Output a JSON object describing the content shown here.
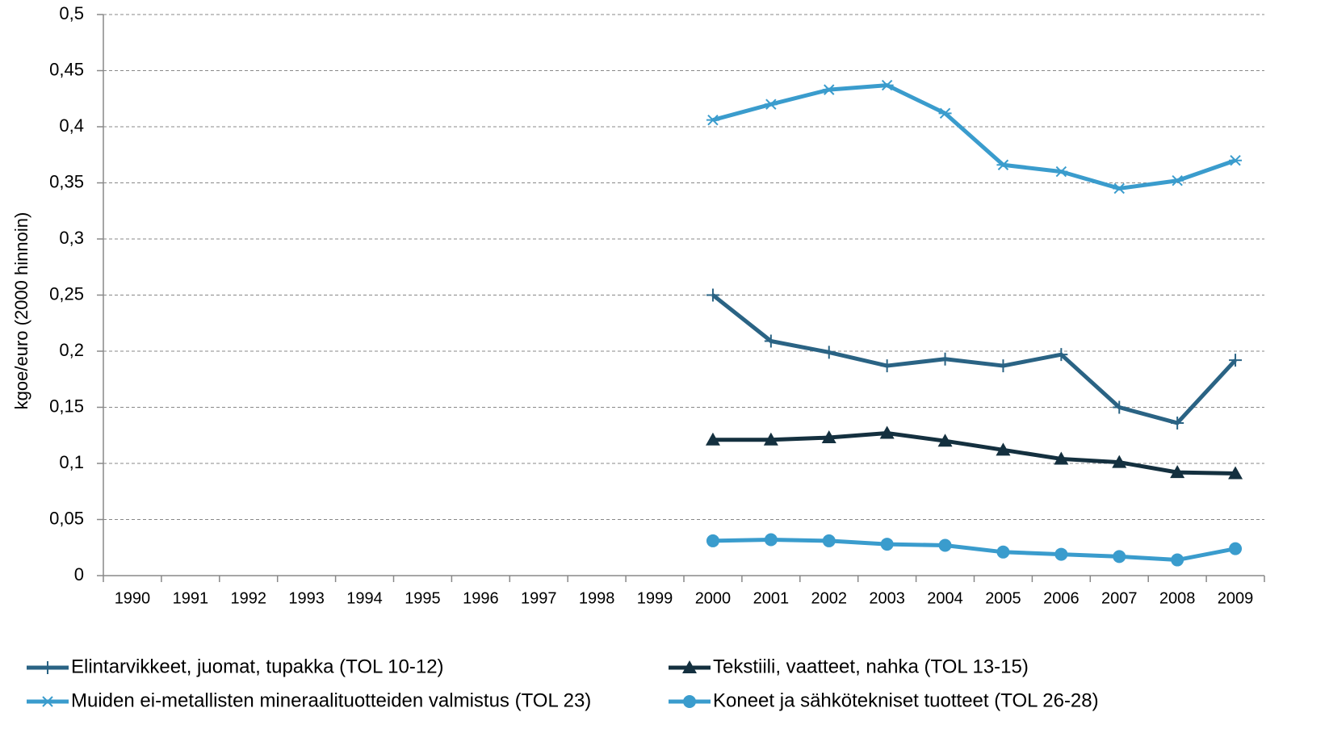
{
  "chart_data": {
    "type": "line",
    "y_label": "kgoe/euro (2000 hinnoin)",
    "categories": [
      "1990",
      "1991",
      "1992",
      "1993",
      "1994",
      "1995",
      "1996",
      "1997",
      "1998",
      "1999",
      "2000",
      "2001",
      "2002",
      "2003",
      "2004",
      "2005",
      "2006",
      "2007",
      "2008",
      "2009"
    ],
    "series": [
      {
        "name": "Elintarvikkeet, juomat, tupakka (TOL 10-12)",
        "color": "#2a6384",
        "marker": "plus",
        "values": [
          null,
          null,
          null,
          null,
          null,
          null,
          null,
          null,
          null,
          null,
          0.25,
          0.209,
          0.199,
          0.187,
          0.193,
          0.187,
          0.197,
          0.15,
          0.136,
          0.192
        ]
      },
      {
        "name": "Tekstiili, vaatteet, nahka (TOL 13-15)",
        "color": "#14303f",
        "marker": "triangle",
        "values": [
          null,
          null,
          null,
          null,
          null,
          null,
          null,
          null,
          null,
          null,
          0.121,
          0.121,
          0.123,
          0.127,
          0.12,
          0.112,
          0.104,
          0.101,
          0.092,
          0.091
        ]
      },
      {
        "name": "Muiden ei-metallisten mineraalituotteiden valmistus (TOL 23)",
        "color": "#3a9ccd",
        "marker": "asterisk",
        "values": [
          null,
          null,
          null,
          null,
          null,
          null,
          null,
          null,
          null,
          null,
          0.406,
          0.42,
          0.433,
          0.437,
          0.412,
          0.366,
          0.36,
          0.345,
          0.352,
          0.37
        ]
      },
      {
        "name": "Koneet ja sähkötekniset tuotteet (TOL 26-28)",
        "color": "#3a9ccd",
        "marker": "circle",
        "values": [
          null,
          null,
          null,
          null,
          null,
          null,
          null,
          null,
          null,
          null,
          0.031,
          0.032,
          0.031,
          0.028,
          0.027,
          0.021,
          0.019,
          0.017,
          0.014,
          0.024
        ]
      }
    ],
    "ylim": [
      0,
      0.5
    ],
    "yticks": [
      0,
      {
        "value": 0.05,
        "label": "0,05"
      },
      {
        "value": 0.1,
        "label": "0,1"
      },
      {
        "value": 0.15,
        "label": "0,15"
      },
      {
        "value": 0.2,
        "label": "0,2"
      },
      {
        "value": 0.25,
        "label": "0,25"
      },
      {
        "value": 0.3,
        "label": "0,3"
      },
      {
        "value": 0.35,
        "label": "0,35"
      },
      {
        "value": 0.4,
        "label": "0,4"
      },
      {
        "value": 0.45,
        "label": "0,45"
      },
      {
        "value": 0.5,
        "label": "0,5"
      }
    ],
    "grid": true,
    "legend": "bottom"
  }
}
